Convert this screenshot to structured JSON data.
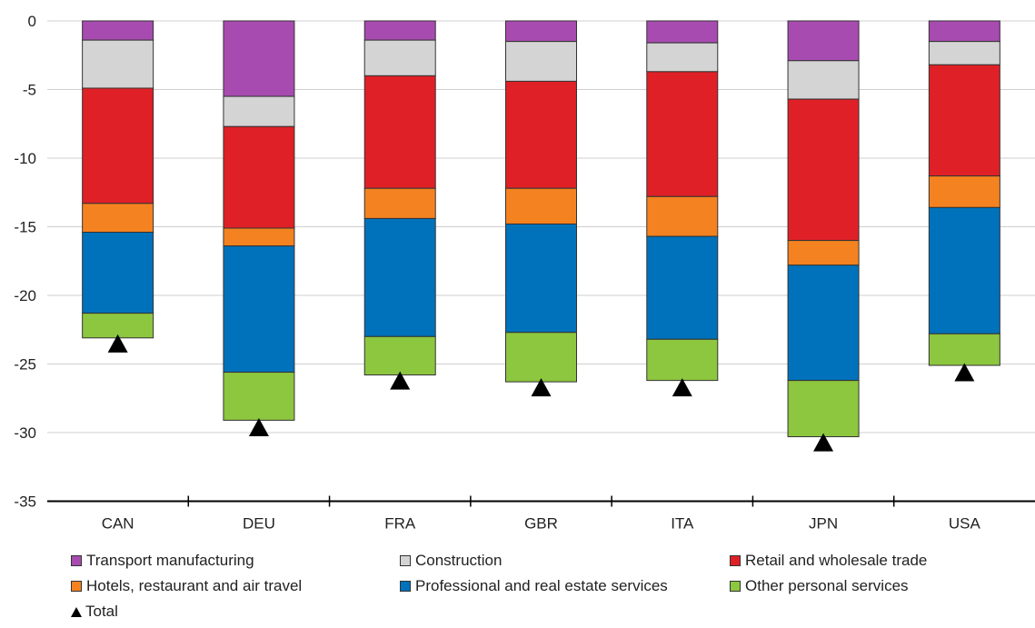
{
  "chart_data": {
    "type": "bar",
    "stacked": true,
    "title": "",
    "xlabel": "",
    "ylabel": "",
    "ylim": [
      -35,
      0
    ],
    "yticks": [
      0,
      -5,
      -10,
      -15,
      -20,
      -25,
      -30,
      -35
    ],
    "grid": true,
    "legend_position": "bottom",
    "categories": [
      "CAN",
      "DEU",
      "FRA",
      "GBR",
      "ITA",
      "JPN",
      "USA"
    ],
    "series": [
      {
        "name": "Transport manufacturing",
        "color": "#a84bb0",
        "values": [
          -1.4,
          -5.5,
          -1.4,
          -1.5,
          -1.6,
          -2.9,
          -1.5
        ]
      },
      {
        "name": "Construction",
        "color": "#d4d4d4",
        "values": [
          -3.5,
          -2.2,
          -2.6,
          -2.9,
          -2.1,
          -2.8,
          -1.7
        ]
      },
      {
        "name": "Retail and wholesale trade",
        "color": "#e02027",
        "values": [
          -8.4,
          -7.4,
          -8.2,
          -7.8,
          -9.1,
          -10.3,
          -8.1
        ]
      },
      {
        "name": "Hotels, restaurant and air travel",
        "color": "#f58220",
        "values": [
          -2.1,
          -1.3,
          -2.2,
          -2.6,
          -2.9,
          -1.8,
          -2.3
        ]
      },
      {
        "name": "Professional and real estate services",
        "color": "#0072bc",
        "values": [
          -5.9,
          -9.2,
          -8.6,
          -7.9,
          -7.5,
          -8.4,
          -9.2
        ]
      },
      {
        "name": "Other personal services",
        "color": "#8dc63f",
        "values": [
          -1.8,
          -3.5,
          -2.8,
          -3.6,
          -3.0,
          -4.1,
          -2.3
        ]
      }
    ],
    "total": {
      "name": "Total",
      "values": [
        -23.5,
        -29.6,
        -26.2,
        -26.7,
        -26.7,
        -30.7,
        -25.6
      ]
    }
  }
}
